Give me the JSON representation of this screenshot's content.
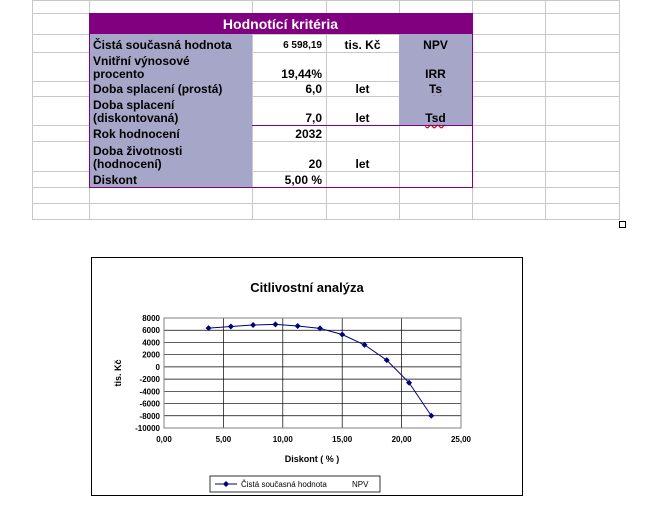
{
  "table": {
    "header": "Hodnotící kritéria",
    "rows": [
      {
        "label": "Čistá současná hodnota",
        "value": "6 598,19",
        "unit": "tis. Kč",
        "abbr": "NPV"
      },
      {
        "label_line1": "Vnitřní výnosové",
        "label_line2": "procento",
        "value": "19,44%",
        "unit": "",
        "abbr": "IRR"
      },
      {
        "label": "Doba splacení (prostá)",
        "value": "6,0",
        "unit": "let",
        "abbr": "Ts"
      },
      {
        "label_line1": "Doba splacení",
        "label_line2": "(diskontovaná)",
        "value": "7,0",
        "unit": "let",
        "abbr": "Tsd"
      },
      {
        "label": "Rok hodnocení",
        "value": "2032",
        "unit": "",
        "abbr": ""
      },
      {
        "label_line1": "Doba životnosti",
        "label_line2": "(hodnocení)",
        "value": "20",
        "unit": "let",
        "abbr": ""
      },
      {
        "label": "Diskont",
        "value": "5,00 %",
        "unit": "",
        "abbr": ""
      }
    ]
  },
  "colors": {
    "header_bg": "#800080",
    "label_bg": "#a6a6c8",
    "series": "#00007f"
  },
  "chart_data": {
    "type": "line",
    "title": "Citlivostní analýza",
    "xlabel": "Diskont  ( % )",
    "ylabel": "tis. Kč",
    "xlim": [
      0,
      25
    ],
    "ylim": [
      -10000,
      8000
    ],
    "x_ticks": [
      "0,00",
      "5,00",
      "10,00",
      "15,00",
      "20,00",
      "25,00"
    ],
    "y_ticks": [
      "8000",
      "6000",
      "4000",
      "2000",
      "0",
      "-2000",
      "-4000",
      "-6000",
      "-8000",
      "-10000"
    ],
    "grid": true,
    "legend": "bottom",
    "series": [
      {
        "name": "Čistá současná hodnota",
        "x": [
          3.75,
          5.63,
          7.5,
          9.38,
          11.25,
          13.13,
          15.0,
          16.88,
          18.75,
          20.63,
          22.5
        ],
        "y": [
          6350,
          6600,
          6850,
          6950,
          6700,
          6300,
          5300,
          3600,
          1100,
          -2600,
          -8000
        ]
      }
    ],
    "legend_extra": "NPV"
  }
}
